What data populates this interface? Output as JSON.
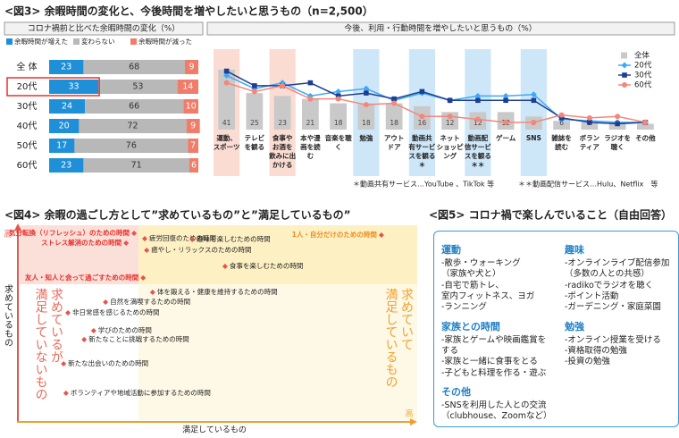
{
  "fig3_title": "<図3> 余暇時間の変化と、今後時間を増やしたいと思うもの（n=2,500）",
  "chart_data": [
    {
      "type": "stacked-bar",
      "title": "コロナ禍前と比べた余暇時間の変化（%）",
      "categories": [
        "全 体",
        "20代",
        "30代",
        "40代",
        "50代",
        "60代"
      ],
      "series": [
        {
          "name": "余暇時間が増えた",
          "color": "#1f8fd8",
          "values": [
            23,
            33,
            24,
            20,
            17,
            23
          ]
        },
        {
          "name": "変わらない",
          "color": "#b8b8b8",
          "values": [
            68,
            53,
            66,
            72,
            76,
            71
          ]
        },
        {
          "name": "余暇時間が減った",
          "color": "#f07c6a",
          "values": [
            9,
            14,
            10,
            9,
            7,
            6
          ]
        }
      ],
      "xlim": [
        0,
        100
      ],
      "highlight": 1
    },
    {
      "type": "combo",
      "title": "今後、利用・行動時間を増やしたいと思うもの（%）",
      "categories": [
        "運動、\nスポーツ",
        "テレビ\nを観る",
        "食事や\nお酒を\n飲みに出\nかける",
        "本や漫\n画を読\nむ",
        "音楽を聴\nく",
        "勉強",
        "アウト\nドア",
        "動画共\n有サービ\nスを観る\n＊",
        "ネット\nショッピ\nング",
        "動画配\n信サービ\nスを観る\n＊＊",
        "ゲーム",
        "SNS",
        "雑誌を\n読む",
        "ボラン\nティア",
        "ラジオを\n聴く",
        "その他"
      ],
      "band_colors": [
        "#fbdcd3",
        null,
        "#fbdcd3",
        null,
        null,
        "#cde7f8",
        null,
        "#cde7f8",
        null,
        "#cde7f8",
        null,
        "#cde7f8",
        null,
        null,
        null,
        null
      ],
      "series": [
        {
          "name": "全体",
          "type": "bar",
          "color": "#c9c9c9",
          "values": [
            41,
            25,
            23,
            21,
            18,
            18,
            18,
            16,
            12,
            12,
            12,
            9,
            6,
            5,
            5,
            4
          ]
        },
        {
          "name": "20代",
          "type": "line",
          "marker": "diamond",
          "color": "#3fa9f5",
          "values": [
            37,
            28,
            32,
            23,
            26,
            28,
            20,
            25,
            20,
            23,
            23,
            24,
            7,
            6,
            5,
            5
          ]
        },
        {
          "name": "30代",
          "type": "line",
          "marker": "square",
          "color": "#1c3f94",
          "values": [
            40,
            30,
            30,
            32,
            23,
            25,
            21,
            26,
            20,
            20,
            20,
            20,
            8,
            5,
            4,
            5
          ]
        },
        {
          "name": "60代",
          "type": "line",
          "marker": "circle",
          "color": "#f4877a",
          "values": [
            32,
            26,
            30,
            21,
            21,
            17,
            18,
            9,
            9,
            7,
            5,
            5,
            10,
            8,
            9,
            5
          ]
        }
      ],
      "ylim": [
        0,
        55
      ],
      "notes": [
        "＊動画共有サービス…YouTube 、TikTok 等",
        "＊＊動画配信サービス…Hulu、Netflix　等"
      ]
    },
    {
      "type": "scatter",
      "title": "<図4> 余暇の過ごし方として”求めているもの”と”満足しているもの”",
      "x_label": "満足しているもの",
      "y_label": "求めているもの",
      "x_high_label": "高",
      "y_high_label": "高",
      "quadrant_labels": [
        "求めているが\n満足していないもの",
        "求めていて\n満足しているもの"
      ],
      "xlim": [
        0,
        100
      ],
      "ylim": [
        0,
        100
      ],
      "marker_color": "#e8534a",
      "points": [
        {
          "label": "気分転換（リフレッシュ）のための時間",
          "x": 28.9,
          "y": 97.2,
          "label_color": "#e8302a"
        },
        {
          "label": "ストレス解消のための時間",
          "x": 26.9,
          "y": 92.1,
          "label_color": "#e8302a"
        },
        {
          "label": "友人・知人と会って過ごすための時間",
          "x": 31.2,
          "y": 74.0,
          "label_color": "#e8302a"
        },
        {
          "label": "1人・自分だけのための時間",
          "x": 91.4,
          "y": 96.3,
          "label_color": "#f08a1c"
        },
        {
          "label": "疲労回復のための時間",
          "x": 31.6,
          "y": 94.4,
          "label_color": "#222222"
        },
        {
          "label": "趣味を楽しむための時間",
          "x": 43.6,
          "y": 94.0,
          "label_color": "#222222"
        },
        {
          "label": "癒やし・リラックスのための時間",
          "x": 32.1,
          "y": 88.4,
          "label_color": "#222222"
        },
        {
          "label": "食事を楽しむための時間",
          "x": 51.9,
          "y": 80.0,
          "label_color": "#222222"
        },
        {
          "label": "体を鍛える・健康を維持するための時間",
          "x": 33.6,
          "y": 66.5,
          "label_color": "#222222"
        },
        {
          "label": "自然を満喫するための時間",
          "x": 21.7,
          "y": 61.4,
          "label_color": "#222222"
        },
        {
          "label": "非日常感を感じるための時間",
          "x": 12.2,
          "y": 55.8,
          "label_color": "#222222"
        },
        {
          "label": "学びのための時間",
          "x": 18.7,
          "y": 46.5,
          "label_color": "#222222"
        },
        {
          "label": "新たなことに挑戦するための時間",
          "x": 16.3,
          "y": 41.9,
          "label_color": "#222222"
        },
        {
          "label": "新たな出会いのための時間",
          "x": 11.1,
          "y": 29.3,
          "label_color": "#222222"
        },
        {
          "label": "ボランティアや地域活動に参加するための時間",
          "x": 11.7,
          "y": 14.0,
          "label_color": "#222222"
        }
      ]
    }
  ],
  "fig5": {
    "title": "<図5> コロナ禍で楽しんでいること（自由回答）",
    "columns": [
      {
        "sections": [
          {
            "heading": "運動",
            "items": [
              "-散歩・ウォーキング\n（家族や犬と）",
              "-自宅で筋トレ、\n室内フィットネス、ヨガ",
              "-ランニング"
            ]
          },
          {
            "heading": "家族との時間",
            "items": [
              "-家族とゲームや映画鑑賞をする",
              "-家族と一緒に食事をとる",
              "-子どもと料理を作る・遊ぶ"
            ]
          },
          {
            "heading": "その他",
            "items": [
              "-SNSを利用した人との交流\n（clubhouse、Zoomなど）"
            ]
          }
        ]
      },
      {
        "sections": [
          {
            "heading": "趣味",
            "items": [
              "-オンラインライブ配信参加\n（多数の人との共感）",
              "-radikoでラジオを聴く",
              "-ポイント活動",
              "-ガーデニング・家庭菜園"
            ]
          },
          {
            "heading": "勉強",
            "items": [
              "-オンライン授業を受ける",
              "-資格取得の勉強",
              "-投資の勉強"
            ]
          }
        ]
      }
    ]
  }
}
